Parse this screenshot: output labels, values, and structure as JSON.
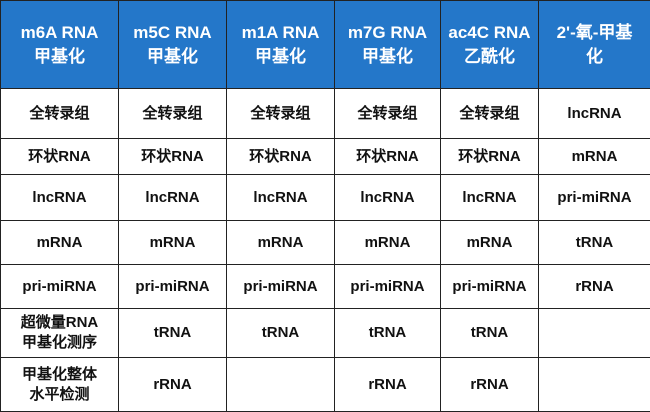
{
  "table": {
    "header": [
      [
        "m6A RNA",
        "甲基化"
      ],
      [
        "m5C RNA",
        "甲基化"
      ],
      [
        "m1A RNA",
        "甲基化"
      ],
      [
        "m7G RNA",
        "甲基化"
      ],
      [
        "ac4C RNA",
        "乙酰化"
      ],
      [
        "2'-氧-甲基",
        "化"
      ]
    ],
    "rows": [
      [
        "全转录组",
        "全转录组",
        "全转录组",
        "全转录组",
        "全转录组",
        "lncRNA"
      ],
      [
        "环状RNA",
        "环状RNA",
        "环状RNA",
        "环状RNA",
        "环状RNA",
        "mRNA"
      ],
      [
        "lncRNA",
        "lncRNA",
        "lncRNA",
        "lncRNA",
        "lncRNA",
        "pri-miRNA"
      ],
      [
        "mRNA",
        "mRNA",
        "mRNA",
        "mRNA",
        "mRNA",
        "tRNA"
      ],
      [
        "pri-miRNA",
        "pri-miRNA",
        "pri-miRNA",
        "pri-miRNA",
        "pri-miRNA",
        "rRNA"
      ],
      [
        [
          "超微量RNA",
          "甲基化测序"
        ],
        "tRNA",
        "tRNA",
        "tRNA",
        "tRNA",
        null
      ],
      [
        [
          "甲基化整体",
          "水平检测"
        ],
        "rRNA",
        null,
        "rRNA",
        "rRNA",
        null
      ]
    ]
  }
}
